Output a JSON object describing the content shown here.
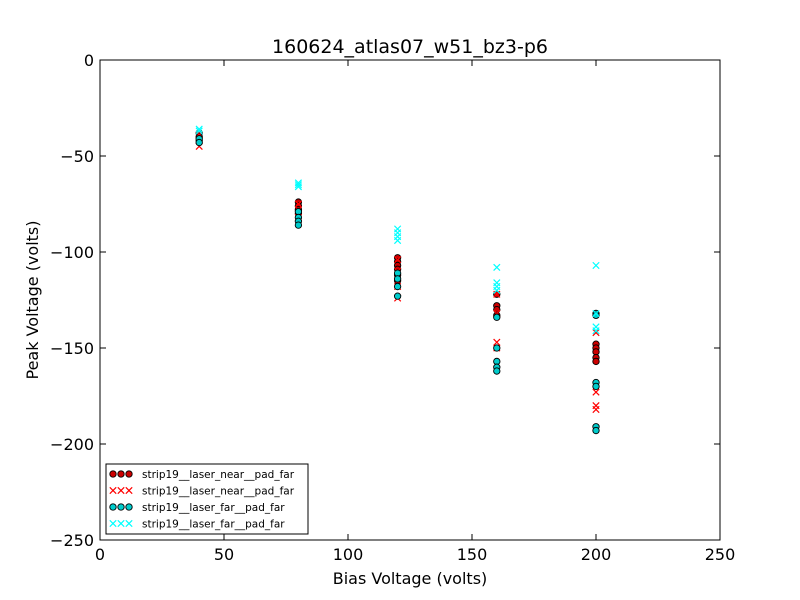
{
  "chart_data": {
    "type": "scatter",
    "title": "160624_atlas07_w51_bz3-p6",
    "xlabel": "Bias Voltage (volts)",
    "ylabel": "Peak Voltage (volts)",
    "xlim": [
      0,
      250
    ],
    "ylim": [
      -250,
      0
    ],
    "xticks": [
      0,
      50,
      100,
      150,
      200,
      250
    ],
    "yticks": [
      0,
      -50,
      -100,
      -150,
      -200,
      -250
    ],
    "xtick_labels": [
      "0",
      "50",
      "100",
      "150",
      "200",
      "250"
    ],
    "ytick_labels": [
      "0",
      "−50",
      "−100",
      "−150",
      "−200",
      "−250"
    ],
    "grid": false,
    "legend_position": "lower-left",
    "series": [
      {
        "name": "strip19__laser_near__pad_far",
        "marker": "circle",
        "color": "#cc0000",
        "points": [
          [
            40,
            -38
          ],
          [
            40,
            -40
          ],
          [
            40,
            -42
          ],
          [
            80,
            -74
          ],
          [
            80,
            -76
          ],
          [
            80,
            -78
          ],
          [
            80,
            -80
          ],
          [
            120,
            -103
          ],
          [
            120,
            -105
          ],
          [
            120,
            -107
          ],
          [
            120,
            -109
          ],
          [
            120,
            -112
          ],
          [
            120,
            -115
          ],
          [
            160,
            -122
          ],
          [
            160,
            -128
          ],
          [
            160,
            -130
          ],
          [
            160,
            -133
          ],
          [
            200,
            -148
          ],
          [
            200,
            -150
          ],
          [
            200,
            -152
          ],
          [
            200,
            -155
          ],
          [
            200,
            -157
          ]
        ]
      },
      {
        "name": "strip19__laser_near__pad_far",
        "marker": "x",
        "color": "#ff0000",
        "points": [
          [
            40,
            -39
          ],
          [
            40,
            -42
          ],
          [
            40,
            -45
          ],
          [
            80,
            -75
          ],
          [
            80,
            -78
          ],
          [
            80,
            -82
          ],
          [
            120,
            -104
          ],
          [
            120,
            -110
          ],
          [
            120,
            -118
          ],
          [
            120,
            -124
          ],
          [
            160,
            -122
          ],
          [
            160,
            -132
          ],
          [
            160,
            -147
          ],
          [
            160,
            -150
          ],
          [
            200,
            -142
          ],
          [
            200,
            -173
          ],
          [
            200,
            -180
          ],
          [
            200,
            -182
          ]
        ]
      },
      {
        "name": "strip19__laser_far__pad_far",
        "marker": "circle",
        "color": "#00cccc",
        "points": [
          [
            40,
            -41
          ],
          [
            40,
            -43
          ],
          [
            80,
            -79
          ],
          [
            80,
            -82
          ],
          [
            80,
            -84
          ],
          [
            80,
            -86
          ],
          [
            120,
            -111
          ],
          [
            120,
            -114
          ],
          [
            120,
            -118
          ],
          [
            120,
            -123
          ],
          [
            160,
            -134
          ],
          [
            160,
            -150
          ],
          [
            160,
            -157
          ],
          [
            160,
            -160
          ],
          [
            160,
            -162
          ],
          [
            200,
            -132
          ],
          [
            200,
            -133
          ],
          [
            200,
            -168
          ],
          [
            200,
            -170
          ],
          [
            200,
            -191
          ],
          [
            200,
            -193
          ]
        ]
      },
      {
        "name": "strip19__laser_far__pad_far",
        "marker": "x",
        "color": "#00ffff",
        "points": [
          [
            40,
            -36
          ],
          [
            40,
            -37
          ],
          [
            80,
            -64
          ],
          [
            80,
            -65
          ],
          [
            80,
            -66
          ],
          [
            120,
            -88
          ],
          [
            120,
            -90
          ],
          [
            120,
            -92
          ],
          [
            120,
            -94
          ],
          [
            160,
            -108
          ],
          [
            160,
            -116
          ],
          [
            160,
            -118
          ],
          [
            160,
            -120
          ],
          [
            200,
            -107
          ],
          [
            200,
            -132
          ],
          [
            200,
            -139
          ],
          [
            200,
            -141
          ]
        ]
      }
    ]
  }
}
